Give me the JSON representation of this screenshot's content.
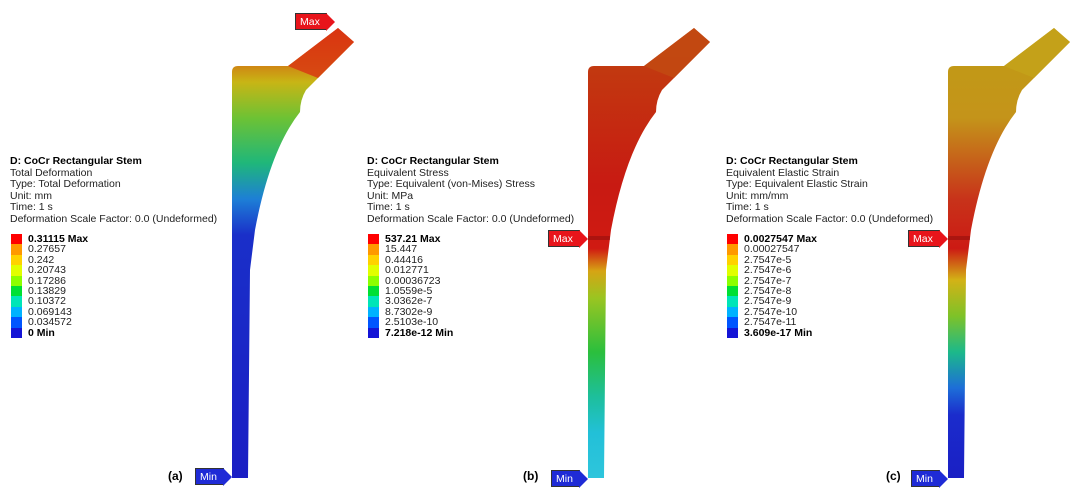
{
  "panels": [
    {
      "label": "(a)",
      "title": "D: CoCr Rectangular Stem",
      "result": "Total Deformation",
      "type": "Type: Total Deformation",
      "unit": "Unit: mm",
      "time": "Time: 1 s",
      "scale": "Deformation Scale Factor: 0.0 (Undeformed)",
      "legend": [
        "0.31115 Max",
        "0.27657",
        "0.242",
        "0.20743",
        "0.17286",
        "0.13829",
        "0.10372",
        "0.069143",
        "0.034572",
        "0 Min"
      ],
      "max_tag": "Max",
      "min_tag": "Min"
    },
    {
      "label": "(b)",
      "title": "D: CoCr Rectangular Stem",
      "result": "Equivalent Stress",
      "type": "Type: Equivalent (von-Mises) Stress",
      "unit": "Unit: MPa",
      "time": "Time: 1 s",
      "scale": "Deformation Scale Factor: 0.0 (Undeformed)",
      "legend": [
        "537.21 Max",
        "15.447",
        "0.44416",
        "0.012771",
        "0.00036723",
        "1.0559e-5",
        "3.0362e-7",
        "8.7302e-9",
        "2.5103e-10",
        "7.218e-12 Min"
      ],
      "max_tag": "Max",
      "min_tag": "Min"
    },
    {
      "label": "(c)",
      "title": "D: CoCr Rectangular Stem",
      "result": "Equivalent Elastic Strain",
      "type": "Type: Equivalent Elastic Strain",
      "unit": "Unit: mm/mm",
      "time": "Time: 1 s",
      "scale": "Deformation Scale Factor: 0.0 (Undeformed)",
      "legend": [
        "0.0027547 Max",
        "0.00027547",
        "2.7547e-5",
        "2.7547e-6",
        "2.7547e-7",
        "2.7547e-8",
        "2.7547e-9",
        "2.7547e-10",
        "2.7547e-11",
        "3.609e-17 Min"
      ],
      "max_tag": "Max",
      "min_tag": "Min"
    }
  ],
  "legend_colors": [
    "#ff0000",
    "#ff9900",
    "#ffd200",
    "#e1ff00",
    "#8cff00",
    "#00e033",
    "#00e5b8",
    "#00b2ff",
    "#0055ff",
    "#1414d6"
  ]
}
